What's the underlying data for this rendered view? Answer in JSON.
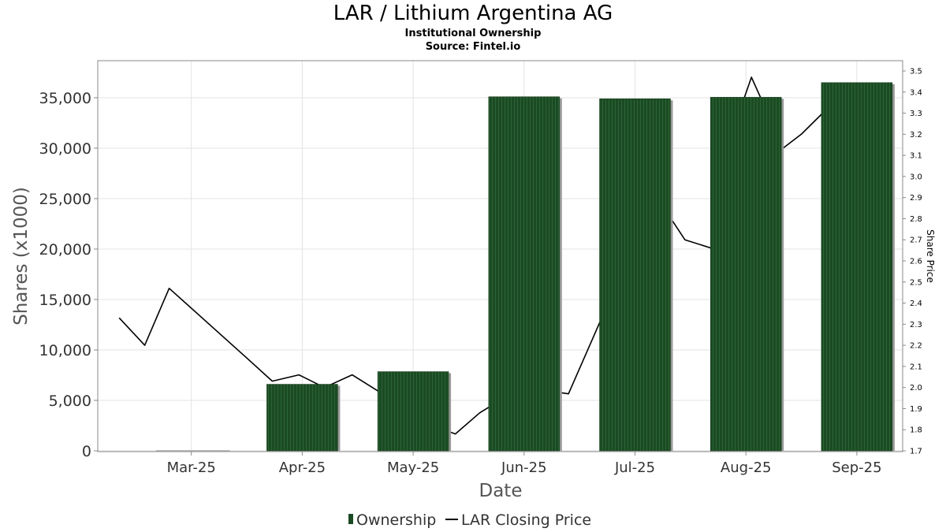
{
  "header": {
    "title": "LAR / Lithium Argentina AG",
    "subtitle": "Institutional Ownership",
    "source": "Source: Fintel.io"
  },
  "chart_data": {
    "type": "bar",
    "title": "LAR / Lithium Argentina AG",
    "subtitle": "Institutional Ownership",
    "xlabel": "Date",
    "ylabel": "Shares (x1000)",
    "y2label": "Share Price",
    "x_ticks": [
      "Mar-25",
      "Apr-25",
      "May-25",
      "Jun-25",
      "Jul-25",
      "Aug-25",
      "Sep-25"
    ],
    "ylim": [
      0,
      37000
    ],
    "y_ticks": [
      0,
      5000,
      10000,
      15000,
      20000,
      25000,
      30000,
      35000
    ],
    "y_tick_labels": [
      "0",
      "5,000",
      "10,000",
      "15,000",
      "20,000",
      "25,000",
      "30,000",
      "35,000"
    ],
    "y2lim": [
      1.7,
      3.5
    ],
    "y2_ticks": [
      "1.7",
      "1.8",
      "1.9",
      "2.0",
      "2.1",
      "2.2",
      "2.3",
      "2.4",
      "2.5",
      "2.6",
      "2.7",
      "2.8",
      "2.9",
      "3.0",
      "3.1",
      "3.2",
      "3.3",
      "3.4",
      "3.5"
    ],
    "grid": true,
    "legend_position": "bottom",
    "series": [
      {
        "name": "Ownership",
        "type": "bar",
        "color": "#1b4a24",
        "points": [
          {
            "x": 1.0,
            "value": 0
          },
          {
            "x": 2.0,
            "value": 6600
          },
          {
            "x": 3.0,
            "value": 7850
          },
          {
            "x": 4.0,
            "value": 35100
          },
          {
            "x": 5.0,
            "value": 34900
          },
          {
            "x": 6.0,
            "value": 35050
          },
          {
            "x": 7.0,
            "value": 36500
          }
        ]
      },
      {
        "name": "LAR Closing Price",
        "type": "line",
        "color": "#000000",
        "points": [
          {
            "x": 0.35,
            "value": 2.33
          },
          {
            "x": 0.58,
            "value": 2.2
          },
          {
            "x": 0.8,
            "value": 2.47
          },
          {
            "x": 1.5,
            "value": 2.14
          },
          {
            "x": 1.73,
            "value": 2.03
          },
          {
            "x": 1.97,
            "value": 2.06
          },
          {
            "x": 2.2,
            "value": 2.0
          },
          {
            "x": 2.45,
            "value": 2.06
          },
          {
            "x": 3.18,
            "value": 1.82
          },
          {
            "x": 3.38,
            "value": 1.78
          },
          {
            "x": 3.6,
            "value": 1.88
          },
          {
            "x": 3.97,
            "value": 2.0
          },
          {
            "x": 4.15,
            "value": 1.99
          },
          {
            "x": 4.4,
            "value": 1.97
          },
          {
            "x": 4.7,
            "value": 2.33
          },
          {
            "x": 4.98,
            "value": 2.55
          },
          {
            "x": 5.2,
            "value": 2.9
          },
          {
            "x": 5.45,
            "value": 2.7
          },
          {
            "x": 5.75,
            "value": 2.65
          },
          {
            "x": 5.97,
            "value": 3.35
          },
          {
            "x": 6.05,
            "value": 3.47
          },
          {
            "x": 6.17,
            "value": 3.33
          },
          {
            "x": 6.3,
            "value": 3.12
          },
          {
            "x": 6.5,
            "value": 3.2
          },
          {
            "x": 6.75,
            "value": 3.33
          }
        ]
      }
    ]
  },
  "legend": {
    "ownership_label": "Ownership",
    "price_label": "LAR Closing Price"
  }
}
